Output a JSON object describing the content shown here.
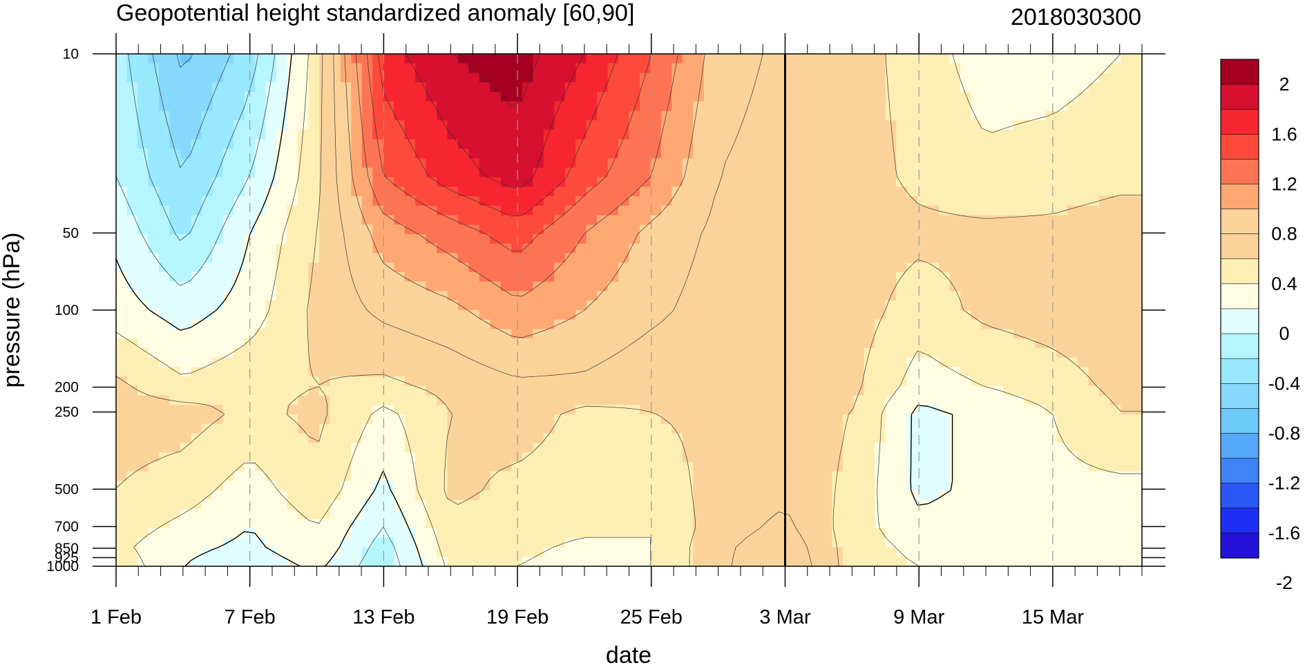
{
  "chart_data": {
    "type": "heatmap",
    "title": "Geopotential height standardized anomaly [60,90]",
    "date_stamp": "2018030300",
    "xlabel": "date",
    "ylabel": "pressure (hPa)",
    "y_scale": "log",
    "y_reversed": true,
    "ylim": [
      1000,
      10
    ],
    "xlim": [
      "2018-02-01",
      "2018-03-19"
    ],
    "x_ticks": [
      {
        "label": "1 Feb",
        "date": "2018-02-01"
      },
      {
        "label": "7 Feb",
        "date": "2018-02-07"
      },
      {
        "label": "13 Feb",
        "date": "2018-02-13"
      },
      {
        "label": "19 Feb",
        "date": "2018-02-19"
      },
      {
        "label": "25 Feb",
        "date": "2018-02-25"
      },
      {
        "label": "3 Mar",
        "date": "2018-03-03"
      },
      {
        "label": "9 Mar",
        "date": "2018-03-09"
      },
      {
        "label": "15 Mar",
        "date": "2018-03-15"
      }
    ],
    "y_ticks": [
      10,
      50,
      100,
      200,
      250,
      500,
      700,
      850,
      925,
      1000
    ],
    "y_tick_labels": [
      "10",
      "50",
      "100",
      "200",
      "250",
      "500",
      "700",
      "850",
      "925",
      "1000"
    ],
    "current_date_marker": "2018-03-03",
    "grid": "dashed vertical lines at labeled dates",
    "contour_levels": [
      -2,
      -1.8,
      -1.6,
      -1.4,
      -1.2,
      -1,
      -0.8,
      -0.6,
      -0.4,
      -0.2,
      0,
      0.2,
      0.4,
      0.6,
      0.8,
      1,
      1.2,
      1.4,
      1.6,
      1.8,
      2
    ],
    "colorbar": {
      "placement": "right",
      "labels": [
        "2",
        "1.6",
        "1.2",
        "0.8",
        "0.4",
        "0",
        "-0.4",
        "-0.8",
        "-1.2",
        "-1.6",
        "-2"
      ],
      "colors": [
        "#a50021",
        "#d6102e",
        "#f62530",
        "#fd4a3a",
        "#fd7454",
        "#fda873",
        "#fbd39a",
        "#fbd39a",
        "#fdeeb3",
        "#fefce2",
        "#e0fefe",
        "#b5f5fe",
        "#98e8fe",
        "#86d8fc",
        "#6ccafb",
        "#55a8fa",
        "#3f83f8",
        "#2a57f6",
        "#1e2ef5",
        "#2412d8"
      ]
    },
    "x_dates": [
      "2018-02-01",
      "2018-02-04",
      "2018-02-07",
      "2018-02-10",
      "2018-02-13",
      "2018-02-16",
      "2018-02-19",
      "2018-02-22",
      "2018-02-25",
      "2018-02-28",
      "2018-03-03",
      "2018-03-06",
      "2018-03-09",
      "2018-03-12",
      "2018-03-15",
      "2018-03-18"
    ],
    "pressure_levels": [
      10,
      30,
      50,
      100,
      200,
      250,
      500,
      700,
      850,
      1000
    ],
    "anomaly_grid": [
      [
        -0.3,
        -0.85,
        -0.5,
        0.3,
        1.5,
        1.8,
        1.9,
        1.6,
        1.2,
        0.7,
        0.55,
        0.5,
        0.3,
        0.1,
        0.1,
        0.2
      ],
      [
        -0.2,
        -0.6,
        -0.2,
        0.35,
        1.2,
        1.5,
        1.7,
        1.3,
        1.0,
        0.6,
        0.5,
        0.5,
        0.35,
        0.25,
        0.3,
        0.35
      ],
      [
        -0.05,
        -0.45,
        0.0,
        0.4,
        0.9,
        1.1,
        1.3,
        1.0,
        0.75,
        0.55,
        0.5,
        0.5,
        0.45,
        0.45,
        0.45,
        0.5
      ],
      [
        0.1,
        -0.1,
        0.1,
        0.45,
        0.65,
        0.75,
        0.95,
        0.8,
        0.65,
        0.5,
        0.5,
        0.5,
        0.3,
        0.45,
        0.5,
        0.55
      ],
      [
        0.45,
        0.25,
        0.35,
        0.4,
        0.35,
        0.45,
        0.55,
        0.55,
        0.45,
        0.45,
        0.5,
        0.45,
        0.1,
        0.2,
        0.3,
        0.45
      ],
      [
        0.5,
        0.5,
        0.35,
        0.45,
        0.15,
        0.4,
        0.5,
        0.35,
        0.4,
        0.45,
        0.5,
        0.4,
        -0.05,
        0.05,
        0.2,
        0.4
      ],
      [
        0.4,
        0.3,
        0.1,
        0.35,
        -0.05,
        0.45,
        0.35,
        0.3,
        0.25,
        0.5,
        0.55,
        0.35,
        -0.05,
        0.05,
        0.15,
        0.15
      ],
      [
        0.3,
        0.15,
        0.0,
        0.2,
        -0.2,
        0.35,
        0.3,
        0.25,
        0.2,
        0.5,
        0.65,
        0.3,
        0.05,
        0.1,
        0.1,
        0.1
      ],
      [
        0.25,
        0.05,
        -0.05,
        0.15,
        -0.3,
        0.3,
        0.25,
        0.15,
        0.2,
        0.55,
        0.75,
        0.3,
        0.15,
        0.1,
        0.1,
        0.1
      ],
      [
        0.35,
        0.0,
        -0.15,
        0.05,
        -0.35,
        0.25,
        0.2,
        0.1,
        0.2,
        0.55,
        0.8,
        0.3,
        0.2,
        0.1,
        0.1,
        0.1
      ]
    ]
  }
}
